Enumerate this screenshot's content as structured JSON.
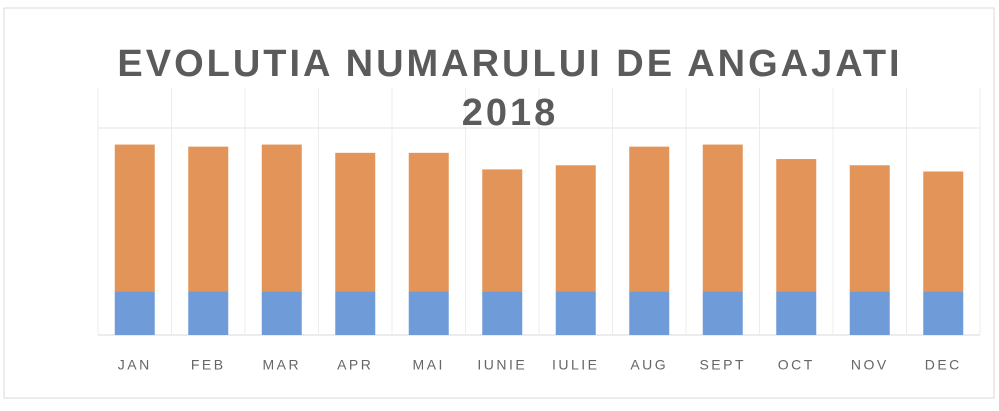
{
  "chart_data": {
    "type": "stacked_bar",
    "title": "EVOLUTIA NUMARULUI DE ANGAJATI",
    "subtitle": "2018",
    "categories": [
      "JAN",
      "FEB",
      "MAR",
      "APR",
      "MAI",
      "IUNIE",
      "IULIE",
      "AUG",
      "SEPT",
      "OCT",
      "NOV",
      "DEC"
    ],
    "series": [
      {
        "color": "#6f9bd9",
        "values": [
          21,
          21,
          21,
          21,
          21,
          21,
          21,
          21,
          21,
          21,
          21,
          21
        ]
      },
      {
        "color": "#e39559",
        "values": [
          71,
          70,
          71,
          67,
          67,
          59,
          61,
          70,
          71,
          64,
          61,
          58
        ]
      }
    ],
    "ylim": [
      0,
      100
    ]
  }
}
